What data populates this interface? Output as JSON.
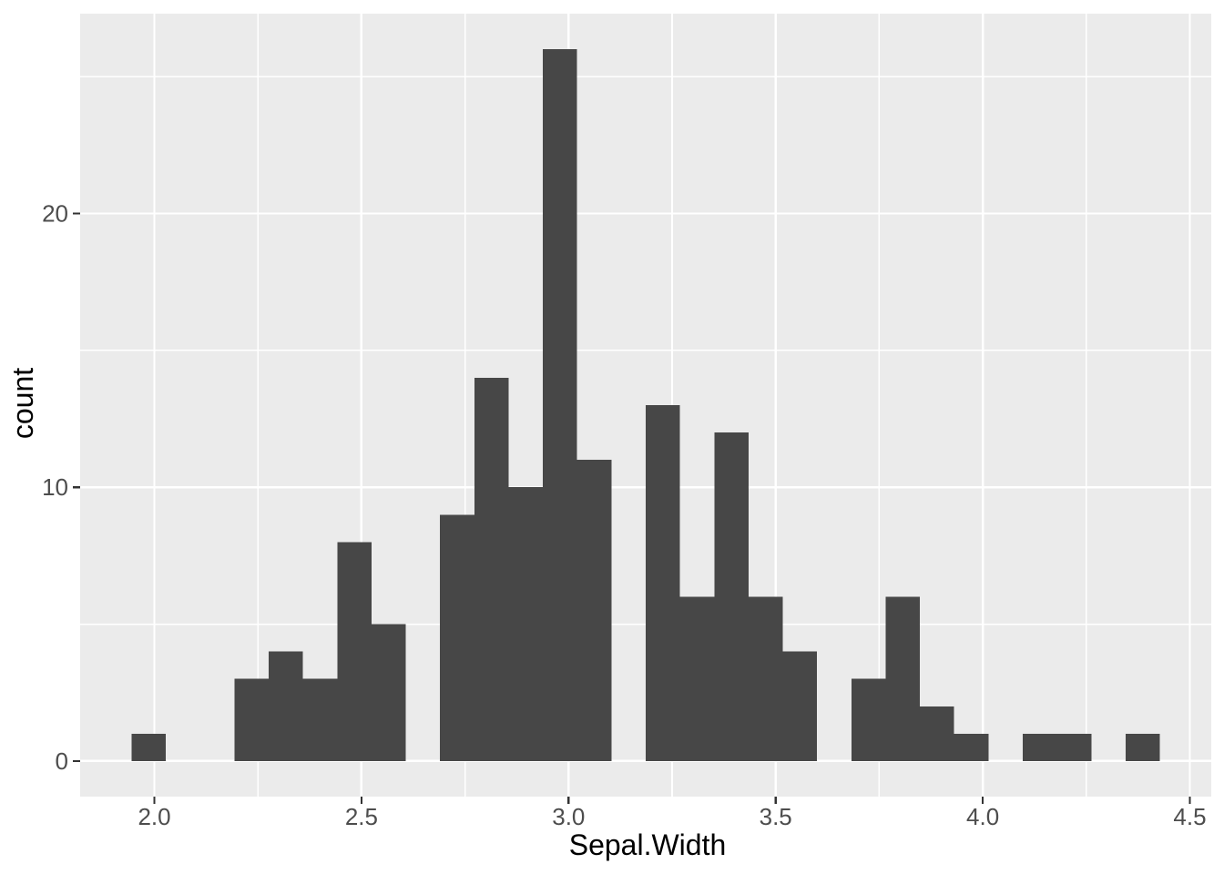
{
  "figure": {
    "background": "#FFFFFF",
    "panel_background": "#EBEBEB",
    "grid_color": "#FFFFFF",
    "bar_fill": "#474747",
    "axis_text_color": "#4D4D4D",
    "axis_title_color": "#000000",
    "tick_mark_color": "#333333"
  },
  "chart_data": {
    "type": "bar",
    "subtype": "histogram",
    "title": "",
    "xlabel": "Sepal.Width",
    "ylabel": "count",
    "legend": "none",
    "grid": true,
    "xlim": [
      1.8207,
      4.5517
    ],
    "ylim": [
      -1.3,
      27.3
    ],
    "x_ticks": [
      {
        "value": 2.0,
        "label": "2.0"
      },
      {
        "value": 2.5,
        "label": "2.5"
      },
      {
        "value": 3.0,
        "label": "3.0"
      },
      {
        "value": 3.5,
        "label": "3.5"
      },
      {
        "value": 4.0,
        "label": "4.0"
      },
      {
        "value": 4.5,
        "label": "4.5"
      }
    ],
    "y_ticks": [
      {
        "value": 0,
        "label": "0"
      },
      {
        "value": 10,
        "label": "10"
      },
      {
        "value": 20,
        "label": "20"
      }
    ],
    "x_minor": [
      2.25,
      2.75,
      3.25,
      3.75,
      4.25
    ],
    "y_minor": [
      5,
      15,
      25
    ],
    "bins": [
      {
        "x0": 1.9448,
        "x1": 2.0276,
        "count": 1
      },
      {
        "x0": 2.1931,
        "x1": 2.2759,
        "count": 3
      },
      {
        "x0": 2.2759,
        "x1": 2.3586,
        "count": 4
      },
      {
        "x0": 2.3586,
        "x1": 2.4414,
        "count": 3
      },
      {
        "x0": 2.4414,
        "x1": 2.5241,
        "count": 8
      },
      {
        "x0": 2.5241,
        "x1": 2.6069,
        "count": 5
      },
      {
        "x0": 2.6897,
        "x1": 2.7724,
        "count": 9
      },
      {
        "x0": 2.7724,
        "x1": 2.8552,
        "count": 14
      },
      {
        "x0": 2.8552,
        "x1": 2.9379,
        "count": 10
      },
      {
        "x0": 2.9379,
        "x1": 3.0207,
        "count": 26
      },
      {
        "x0": 3.0207,
        "x1": 3.1034,
        "count": 11
      },
      {
        "x0": 3.1862,
        "x1": 3.269,
        "count": 13
      },
      {
        "x0": 3.269,
        "x1": 3.3517,
        "count": 6
      },
      {
        "x0": 3.3517,
        "x1": 3.4345,
        "count": 12
      },
      {
        "x0": 3.4345,
        "x1": 3.5172,
        "count": 6
      },
      {
        "x0": 3.5172,
        "x1": 3.6,
        "count": 4
      },
      {
        "x0": 3.6828,
        "x1": 3.7655,
        "count": 3
      },
      {
        "x0": 3.7655,
        "x1": 3.8483,
        "count": 6
      },
      {
        "x0": 3.8483,
        "x1": 3.931,
        "count": 2
      },
      {
        "x0": 3.931,
        "x1": 4.0138,
        "count": 1
      },
      {
        "x0": 4.0966,
        "x1": 4.1793,
        "count": 1
      },
      {
        "x0": 4.1793,
        "x1": 4.2621,
        "count": 1
      },
      {
        "x0": 4.3448,
        "x1": 4.4276,
        "count": 1
      }
    ]
  }
}
